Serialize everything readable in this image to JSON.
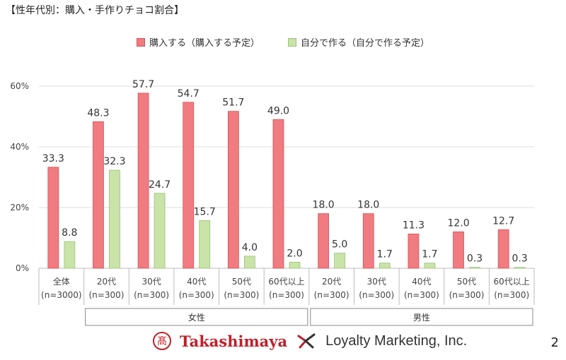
{
  "title": "【性年代別：購入・手作りチョコ割合】",
  "page_number": "2",
  "logos": {
    "brand1": "Takashimaya",
    "brand1_mark": "髙",
    "brand2": "Loyalty Marketing, Inc."
  },
  "colors": {
    "series1": "#f07b80",
    "series2": "#c9e3a8",
    "series1_stroke": "#d9535a",
    "series2_stroke": "#9cc27a"
  },
  "chart_data": {
    "type": "bar",
    "title": "【性年代別：購入・手作りチョコ割合】",
    "ylabel": "",
    "xlabel": "",
    "ylim": [
      0,
      60
    ],
    "yticks": [
      0,
      20,
      40,
      60
    ],
    "ytick_labels": [
      "0%",
      "20%",
      "40%",
      "60%"
    ],
    "legend_position": "top-center",
    "categories": [
      [
        "全体",
        "(n=3000)"
      ],
      [
        "20代",
        "(n=300)"
      ],
      [
        "30代",
        "(n=300)"
      ],
      [
        "40代",
        "(n=300)"
      ],
      [
        "50代",
        "(n=300)"
      ],
      [
        "60代以上",
        "(n=300)"
      ],
      [
        "20代",
        "(n=300)"
      ],
      [
        "30代",
        "(n=300)"
      ],
      [
        "40代",
        "(n=300)"
      ],
      [
        "50代",
        "(n=300)"
      ],
      [
        "60代以上",
        "(n=300)"
      ]
    ],
    "groups": [
      {
        "label": "女性",
        "start": 1,
        "end": 5
      },
      {
        "label": "男性",
        "start": 6,
        "end": 10
      }
    ],
    "series": [
      {
        "name": "購入する（購入する予定）",
        "values": [
          33.3,
          48.3,
          57.7,
          54.7,
          51.7,
          49.0,
          18.0,
          18.0,
          11.3,
          12.0,
          12.7
        ]
      },
      {
        "name": "自分で作る（自分で作る予定）",
        "values": [
          8.8,
          32.3,
          24.7,
          15.7,
          4.0,
          2.0,
          5.0,
          1.7,
          1.7,
          0.3,
          0.3
        ]
      }
    ]
  }
}
